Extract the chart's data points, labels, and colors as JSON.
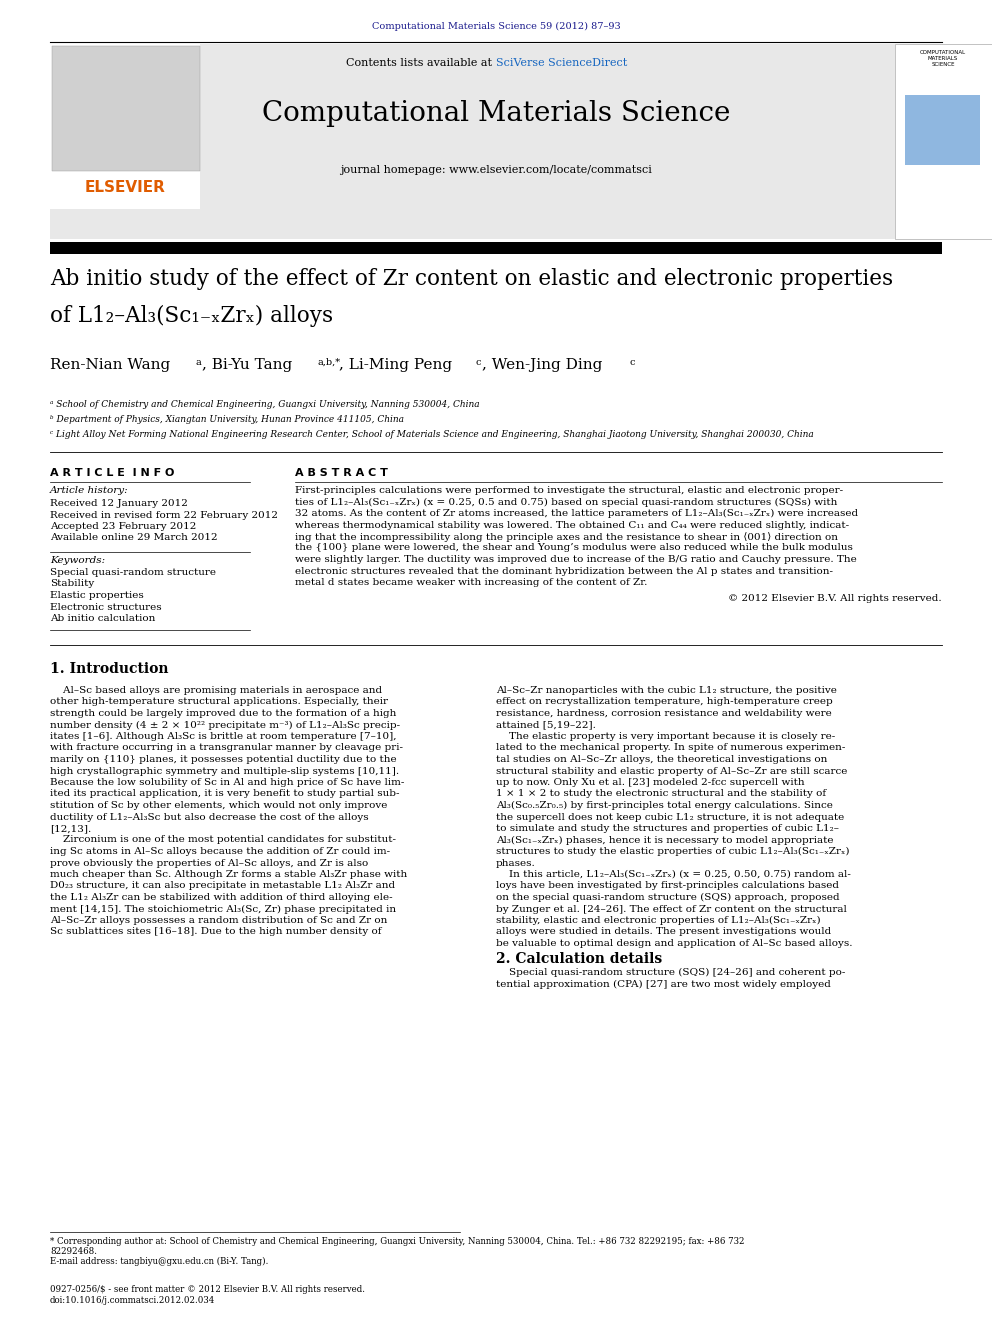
{
  "page_width": 9.92,
  "page_height": 13.23,
  "dpi": 100,
  "background": "#ffffff",
  "top_journal_ref": "Computational Materials Science 59 (2012) 87–93",
  "top_journal_ref_color": "#1a1a8c",
  "journal_name": "Computational Materials Science",
  "journal_url": "journal homepage: www.elsevier.com/locate/commatsci",
  "contents_text": "Contents lists available at ",
  "sciverse_text": "SciVerse ScienceDirect",
  "sciverse_link_color": "#1565C0",
  "elsevier_color": "#e05c00",
  "header_bg": "#e8e8e8",
  "black_bar": "#000000",
  "paper_title_line1": "Ab initio study of the effect of Zr content on elastic and electronic properties",
  "paper_title_line2": "of L1₂–Al₃(Sc₁₋ₓZrₓ) alloys",
  "authors_main": "Ren-Nian Wang",
  "authors_sup1": "a",
  "authors_part2": ", Bi-Yu Tang",
  "authors_sup2": "a,b,*",
  "authors_part3": ", Li-Ming Peng",
  "authors_sup3": "c",
  "authors_part4": ", Wen-Jing Ding",
  "authors_sup4": "c",
  "affil_a": "ᵃ School of Chemistry and Chemical Engineering, Guangxi University, Nanning 530004, China",
  "affil_b": "ᵇ Department of Physics, Xiangtan University, Hunan Province 411105, China",
  "affil_c": "ᶜ Light Alloy Net Forming National Engineering Research Center, School of Materials Science and Engineering, Shanghai Jiaotong University, Shanghai 200030, China",
  "article_info_header": "A R T I C L E  I N F O",
  "abstract_header": "A B S T R A C T",
  "article_history_header": "Article history:",
  "received_date": "Received 12 January 2012",
  "revised_date": "Received in revised form 22 February 2012",
  "accepted_date": "Accepted 23 February 2012",
  "available_date": "Available online 29 March 2012",
  "keywords_header": "Keywords:",
  "keywords": [
    "Special quasi-random structure",
    "Stability",
    "Elastic properties",
    "Electronic structures",
    "Ab initio calculation"
  ],
  "abstract_lines": [
    "First-principles calculations were performed to investigate the structural, elastic and electronic proper-",
    "ties of L1₂–Al₃(Sc₁₋ₓZrₓ) (x = 0.25, 0.5 and 0.75) based on special quasi-random structures (SQSs) with",
    "32 atoms. As the content of Zr atoms increased, the lattice parameters of L1₂–Al₃(Sc₁₋ₓZrₓ) were increased",
    "whereas thermodynamical stability was lowered. The obtained C₁₁ and C₄₄ were reduced slightly, indicat-",
    "ing that the incompressibility along the principle axes and the resistance to shear in ⟨001⟩ direction on",
    "the {100} plane were lowered, the shear and Young’s modulus were also reduced while the bulk modulus",
    "were slightly larger. The ductility was improved due to increase of the B/G ratio and Cauchy pressure. The",
    "electronic structures revealed that the dominant hybridization between the Al p states and transition-",
    "metal d states became weaker with increasing of the content of Zr."
  ],
  "copyright": "© 2012 Elsevier B.V. All rights reserved.",
  "intro_header": "1. Introduction",
  "intro_col1_lines": [
    "    Al–Sc based alloys are promising materials in aerospace and",
    "other high-temperature structural applications. Especially, their",
    "strength could be largely improved due to the formation of a high",
    "number density (4 ± 2 × 10²² precipitate m⁻³) of L1₂–Al₃Sc precip-",
    "itates [1–6]. Although Al₃Sc is brittle at room temperature [7–10],",
    "with fracture occurring in a transgranular manner by cleavage pri-",
    "marily on {110} planes, it possesses potential ductility due to the",
    "high crystallographic symmetry and multiple-slip systems [10,11].",
    "Because the low solubility of Sc in Al and high price of Sc have lim-",
    "ited its practical application, it is very benefit to study partial sub-",
    "stitution of Sc by other elements, which would not only improve",
    "ductility of L1₂–Al₃Sc but also decrease the cost of the alloys",
    "[12,13].",
    "    Zirconium is one of the most potential candidates for substitut-",
    "ing Sc atoms in Al–Sc alloys because the addition of Zr could im-",
    "prove obviously the properties of Al–Sc alloys, and Zr is also",
    "much cheaper than Sc. Although Zr forms a stable Al₃Zr phase with",
    "D0₂₃ structure, it can also precipitate in metastable L1₂ Al₃Zr and",
    "the L1₂ Al₃Zr can be stabilized with addition of third alloying ele-",
    "ment [14,15]. The stoichiometric Al₃(Sc, Zr) phase precipitated in",
    "Al–Sc–Zr alloys possesses a random distribution of Sc and Zr on",
    "Sc sublattices sites [16–18]. Due to the high number density of"
  ],
  "intro_col2_lines": [
    "Al–Sc–Zr nanoparticles with the cubic L1₂ structure, the positive",
    "effect on recrystallization temperature, high-temperature creep",
    "resistance, hardness, corrosion resistance and weldability were",
    "attained [5,19–22].",
    "    The elastic property is very important because it is closely re-",
    "lated to the mechanical property. In spite of numerous experimen-",
    "tal studies on Al–Sc–Zr alloys, the theoretical investigations on",
    "structural stability and elastic property of Al–Sc–Zr are still scarce",
    "up to now. Only Xu et al. [23] modeled 2-fcc supercell with",
    "1 × 1 × 2 to study the electronic structural and the stability of",
    "Al₃(Sc₀.₅Zr₀.₅) by first-principles total energy calculations. Since",
    "the supercell does not keep cubic L1₂ structure, it is not adequate",
    "to simulate and study the structures and properties of cubic L1₂–",
    "Al₃(Sc₁₋ₓZrₓ) phases, hence it is necessary to model appropriate",
    "structures to study the elastic properties of cubic L1₂–Al₃(Sc₁₋ₓZrₓ)",
    "phases.",
    "    In this article, L1₂–Al₃(Sc₁₋ₓZrₓ) (x = 0.25, 0.50, 0.75) random al-",
    "loys have been investigated by first-principles calculations based",
    "on the special quasi-random structure (SQS) approach, proposed",
    "by Zunger et al. [24–26]. The effect of Zr content on the structural",
    "stability, elastic and electronic properties of L1₂–Al₃(Sc₁₋ₓZrₓ)",
    "alloys were studied in details. The present investigations would",
    "be valuable to optimal design and application of Al–Sc based alloys."
  ],
  "sec2_header": "2. Calculation details",
  "sec2_line": "    Special quasi-random structure (SQS) [24–26] and coherent po-",
  "sec2_line2": "tential approximation (CPA) [27] are two most widely employed",
  "footer_line1": "* Corresponding author at: School of Chemistry and Chemical Engineering, Guangxi University, Nanning 530004, China. Tel.: +86 732 82292195; fax: +86 732 82292468.",
  "footer_email": "E-mail address: tangbiyu@gxu.edu.cn (Bi-Y. Tang).",
  "footer_issn": "0927-0256/$ - see front matter © 2012 Elsevier B.V. All rights reserved.",
  "footer_doi": "doi:10.1016/j.commatsci.2012.02.034"
}
